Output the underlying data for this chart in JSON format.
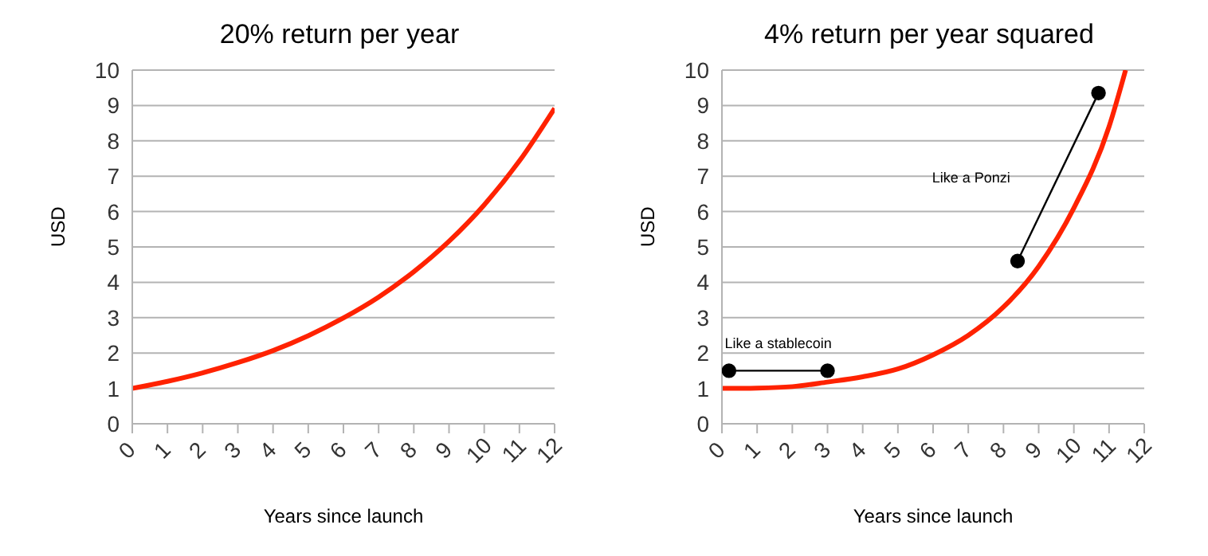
{
  "chart_data": [
    {
      "type": "line",
      "title": "20% return per year",
      "xlabel": "Years since launch",
      "ylabel": "USD",
      "xlim": [
        0,
        12
      ],
      "xticks": [
        0,
        1,
        2,
        3,
        4,
        5,
        6,
        7,
        8,
        9,
        10,
        11,
        12
      ],
      "ylim": [
        0,
        10
      ],
      "yticks": [
        0,
        1,
        2,
        3,
        4,
        5,
        6,
        7,
        8,
        9,
        10
      ],
      "grid": "y",
      "series": [
        {
          "color": "#ff2200",
          "x": [
            0,
            1,
            2,
            3,
            4,
            5,
            6,
            7,
            8,
            9,
            10,
            11,
            12
          ],
          "values": [
            1,
            1.2,
            1.44,
            1.73,
            2.07,
            2.49,
            2.99,
            3.58,
            4.3,
            5.16,
            6.19,
            7.43,
            8.92
          ],
          "marker": "none"
        }
      ]
    },
    {
      "type": "line",
      "title": "4% return per year squared",
      "xlabel": "Years since launch",
      "ylabel": "USD",
      "xlim": [
        0,
        12
      ],
      "xticks": [
        0,
        1,
        2,
        3,
        4,
        5,
        6,
        7,
        8,
        9,
        10,
        11,
        12
      ],
      "ylim": [
        0,
        10
      ],
      "yticks": [
        0,
        1,
        2,
        3,
        4,
        5,
        6,
        7,
        8,
        9,
        10
      ],
      "grid": "y",
      "series": [
        {
          "color": "#ff2200",
          "x": [
            0,
            1,
            2,
            3,
            4,
            5,
            6,
            7,
            8,
            9,
            10,
            11,
            11.47
          ],
          "values": [
            1,
            1.01,
            1.05,
            1.18,
            1.33,
            1.55,
            1.95,
            2.5,
            3.3,
            4.45,
            6.1,
            8.4,
            10
          ],
          "marker": "none"
        },
        {
          "color": "#000000",
          "x": [
            0.2,
            3.0
          ],
          "values": [
            1.5,
            1.5
          ],
          "marker": "circle"
        },
        {
          "color": "#000000",
          "x": [
            8.4,
            10.7
          ],
          "values": [
            4.6,
            9.35
          ],
          "marker": "circle"
        }
      ],
      "annotations": [
        "Like a stablecoin",
        "Like a Ponzi"
      ]
    }
  ]
}
